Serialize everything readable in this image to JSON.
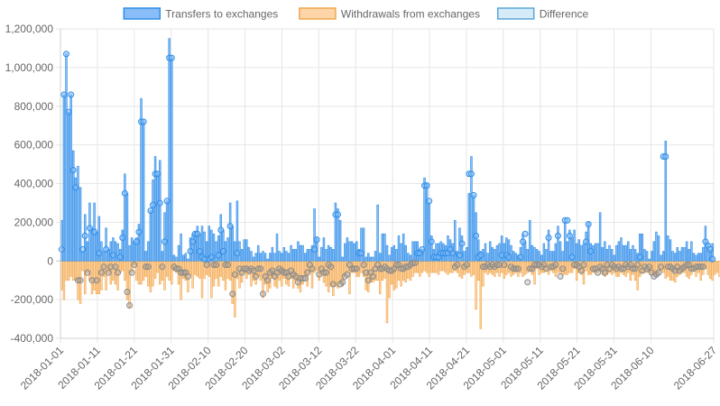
{
  "chart_data": {
    "type": "bar",
    "x_start": "2018-01-01",
    "x_end": "2018-06-27",
    "xticks": [
      "2018-01-01",
      "2018-01-11",
      "2018-01-21",
      "2018-01-31",
      "2018-02-10",
      "2018-02-20",
      "2018-03-02",
      "2018-03-12",
      "2018-03-22",
      "2018-04-01",
      "2018-04-11",
      "2018-04-21",
      "2018-05-01",
      "2018-05-11",
      "2018-05-21",
      "2018-05-31",
      "2018-06-10",
      "2018-06-27"
    ],
    "yticks": [
      "1,200,000",
      "1,000,000",
      "800,000",
      "600,000",
      "400,000",
      "200,000",
      "0",
      "-200,000",
      "-400,000"
    ],
    "ylim": [
      -400000,
      1200000
    ],
    "grid": true,
    "legend_position": "top",
    "colors": {
      "transfers_fill": "#88bdf7",
      "transfers_stroke": "#2f8ee6",
      "withdrawals_fill": "#fdd5a8",
      "withdrawals_stroke": "#f0a64b",
      "difference_fill": "#d6ebf8",
      "difference_stroke": "#5aa8d8"
    },
    "series": [
      {
        "name": "Transfers to exchanges",
        "values": [
          210000,
          860000,
          1070000,
          770000,
          860000,
          570000,
          430000,
          490000,
          380000,
          50000,
          240000,
          100000,
          300000,
          170000,
          300000,
          150000,
          230000,
          100000,
          50000,
          170000,
          60000,
          100000,
          120000,
          100000,
          90000,
          60000,
          160000,
          450000,
          350000,
          80000,
          120000,
          100000,
          120000,
          190000,
          840000,
          720000,
          50000,
          100000,
          260000,
          420000,
          540000,
          450000,
          520000,
          50000,
          250000,
          310000,
          1150000,
          1050000,
          30000,
          20000,
          80000,
          140000,
          30000,
          40000,
          10000,
          120000,
          140000,
          150000,
          180000,
          140000,
          180000,
          150000,
          100000,
          180000,
          160000,
          140000,
          100000,
          130000,
          240000,
          160000,
          100000,
          120000,
          300000,
          180000,
          100000,
          310000,
          100000,
          60000,
          110000,
          110000,
          70000,
          50000,
          20000,
          40000,
          80000,
          40000,
          50000,
          40000,
          10000,
          40000,
          70000,
          40000,
          140000,
          50000,
          40000,
          70000,
          50000,
          40000,
          80000,
          60000,
          60000,
          100000,
          80000,
          80000,
          40000,
          60000,
          60000,
          80000,
          270000,
          120000,
          20000,
          70000,
          120000,
          60000,
          80000,
          70000,
          60000,
          300000,
          270000,
          210000,
          20000,
          90000,
          120000,
          100000,
          100000,
          90000,
          100000,
          60000,
          170000,
          170000,
          20000,
          40000,
          20000,
          20000,
          50000,
          290000,
          40000,
          140000,
          140000,
          80000,
          30000,
          70000,
          80000,
          60000,
          130000,
          90000,
          140000,
          80000,
          40000,
          30000,
          100000,
          100000,
          100000,
          60000,
          60000,
          430000,
          400000,
          300000,
          130000,
          60000,
          90000,
          90000,
          100000,
          90000,
          80000,
          130000,
          110000,
          90000,
          210000,
          50000,
          170000,
          130000,
          50000,
          70000,
          350000,
          540000,
          340000,
          250000,
          110000,
          50000,
          60000,
          90000,
          40000,
          100000,
          70000,
          60000,
          80000,
          90000,
          130000,
          90000,
          120000,
          110000,
          80000,
          50000,
          40000,
          30000,
          70000,
          140000,
          100000,
          60000,
          210000,
          80000,
          70000,
          60000,
          50000,
          30000,
          90000,
          60000,
          160000,
          50000,
          50000,
          90000,
          180000,
          100000,
          50000,
          200000,
          100000,
          160000,
          120000,
          160000,
          90000,
          110000,
          80000,
          90000,
          150000,
          200000,
          90000,
          80000,
          90000,
          90000,
          250000,
          70000,
          100000,
          60000,
          80000,
          60000,
          30000,
          80000,
          100000,
          120000,
          80000,
          80000,
          100000,
          60000,
          80000,
          60000,
          40000,
          140000,
          140000,
          60000,
          50000,
          10000,
          50000,
          100000,
          150000,
          130000,
          30000,
          50000,
          620000,
          130000,
          110000,
          50000,
          40000,
          70000,
          50000,
          70000,
          70000,
          100000,
          60000,
          100000,
          40000,
          30000,
          40000,
          40000,
          70000,
          180000,
          90000,
          60000,
          90000
        ],
        "dots": [
          60000,
          860000,
          1070000,
          770000,
          860000,
          470000,
          380000,
          -100000,
          -100000,
          60000,
          130000,
          -60000,
          170000,
          -100000,
          150000,
          -100000,
          40000,
          -60000,
          -30000,
          60000,
          -60000,
          -30000,
          30000,
          -30000,
          -60000,
          20000,
          120000,
          350000,
          -160000,
          -230000,
          -60000,
          -20000,
          100000,
          150000,
          720000,
          720000,
          -30000,
          -30000,
          260000,
          290000,
          450000,
          450000,
          300000,
          -30000,
          100000,
          310000,
          1050000,
          1050000,
          -30000,
          -40000,
          -40000,
          -60000,
          -60000,
          -60000,
          -80000,
          50000,
          100000,
          140000,
          140000,
          50000,
          20000,
          10000,
          -20000,
          10000,
          20000,
          -20000,
          -20000,
          30000,
          160000,
          50000,
          -20000,
          -20000,
          180000,
          -170000,
          -70000,
          40000,
          -40000,
          -60000,
          -40000,
          -40000,
          -50000,
          -40000,
          -50000,
          -80000,
          -40000,
          -40000,
          -170000,
          -80000,
          -100000,
          -60000,
          -50000,
          -80000,
          -60000,
          -40000,
          -50000,
          -60000,
          -60000,
          -80000,
          -50000,
          -70000,
          -80000,
          -110000,
          -90000,
          -90000,
          -90000,
          -60000,
          -20000,
          -40000,
          60000,
          110000,
          -70000,
          -40000,
          -60000,
          -60000,
          -20000,
          -30000,
          -120000,
          240000,
          240000,
          -120000,
          -110000,
          -80000,
          -70000,
          -20000,
          -40000,
          -40000,
          -40000,
          40000,
          40000,
          -20000,
          -60000,
          -100000,
          -60000,
          -80000,
          -40000,
          -20000,
          -40000,
          -40000,
          -30000,
          -40000,
          -50000,
          -50000,
          -40000,
          -20000,
          -20000,
          -40000,
          -40000,
          -30000,
          -30000,
          -20000,
          -10000,
          -10000,
          40000,
          40000,
          60000,
          390000,
          390000,
          310000,
          100000,
          20000,
          20000,
          20000,
          40000,
          40000,
          40000,
          40000,
          60000,
          40000,
          -30000,
          -20000,
          30000,
          90000,
          -30000,
          -20000,
          450000,
          450000,
          340000,
          130000,
          20000,
          30000,
          -30000,
          -30000,
          -20000,
          -30000,
          -20000,
          -30000,
          -20000,
          -20000,
          30000,
          -20000,
          30000,
          20000,
          -30000,
          -40000,
          -40000,
          -40000,
          20000,
          100000,
          140000,
          -110000,
          -40000,
          -40000,
          -20000,
          -20000,
          -20000,
          -30000,
          -20000,
          -40000,
          120000,
          -30000,
          -30000,
          -20000,
          130000,
          -80000,
          -40000,
          210000,
          210000,
          130000,
          20000,
          -20000,
          -20000,
          -30000,
          -50000,
          -20000,
          100000,
          190000,
          50000,
          -40000,
          -40000,
          -60000,
          -30000,
          -40000,
          -60000,
          -20000,
          -40000,
          -20000,
          -30000,
          -40000,
          -30000,
          -40000,
          -40000,
          -20000,
          -30000,
          -20000,
          -40000,
          -40000,
          -20000,
          20000,
          -50000,
          -30000,
          -40000,
          -30000,
          -60000,
          -80000,
          -70000,
          -60000,
          -30000,
          540000,
          540000,
          -30000,
          -30000,
          -40000,
          -50000,
          -30000,
          -50000,
          -40000,
          -30000,
          -20000,
          -20000,
          -40000,
          -40000,
          -30000,
          -30000,
          -30000,
          -30000,
          100000,
          80000,
          60000,
          10000
        ]
      },
      {
        "name": "Withdrawals from exchanges",
        "values": [
          -150000,
          -200000,
          -100000,
          -100000,
          -80000,
          -100000,
          -100000,
          -200000,
          -220000,
          -50000,
          -170000,
          -60000,
          -100000,
          -170000,
          -150000,
          -170000,
          -170000,
          -150000,
          -80000,
          -150000,
          -60000,
          -120000,
          -100000,
          -120000,
          -150000,
          -60000,
          -50000,
          -100000,
          -200000,
          -240000,
          -60000,
          -20000,
          -100000,
          -120000,
          -120000,
          -100000,
          -80000,
          -130000,
          -160000,
          -130000,
          -90000,
          -60000,
          -120000,
          -100000,
          -150000,
          -80000,
          -100000,
          -120000,
          -50000,
          -60000,
          -120000,
          -200000,
          -90000,
          -100000,
          -160000,
          -70000,
          -140000,
          -70000,
          -80000,
          -90000,
          -190000,
          -90000,
          -70000,
          -80000,
          -190000,
          -130000,
          -90000,
          -130000,
          -80000,
          -100000,
          -150000,
          -90000,
          -100000,
          -220000,
          -290000,
          -90000,
          -140000,
          -110000,
          -60000,
          -90000,
          -70000,
          -130000,
          -100000,
          -120000,
          -80000,
          -100000,
          -190000,
          -120000,
          -160000,
          -140000,
          -90000,
          -130000,
          -140000,
          -100000,
          -130000,
          -90000,
          -120000,
          -130000,
          -90000,
          -140000,
          -100000,
          -140000,
          -160000,
          -120000,
          -80000,
          -130000,
          -60000,
          -140000,
          -60000,
          -50000,
          -100000,
          -70000,
          -110000,
          -130000,
          -160000,
          -130000,
          -180000,
          -130000,
          -140000,
          -110000,
          -130000,
          -80000,
          -60000,
          -170000,
          -60000,
          -60000,
          -80000,
          -80000,
          -60000,
          -80000,
          -150000,
          -160000,
          -110000,
          -110000,
          -100000,
          -100000,
          -170000,
          -100000,
          -90000,
          -320000,
          -190000,
          -120000,
          -150000,
          -140000,
          -100000,
          -130000,
          -100000,
          -110000,
          -90000,
          -100000,
          -80000,
          -60000,
          -60000,
          -80000,
          -60000,
          -50000,
          -60000,
          -80000,
          -60000,
          -60000,
          -60000,
          -70000,
          -50000,
          -50000,
          -60000,
          -70000,
          -60000,
          -60000,
          -50000,
          -60000,
          -80000,
          -90000,
          -70000,
          -60000,
          -60000,
          -80000,
          -70000,
          -250000,
          -100000,
          -350000,
          -130000,
          -60000,
          -70000,
          -60000,
          -70000,
          -80000,
          -60000,
          -80000,
          -60000,
          -90000,
          -70000,
          -60000,
          -80000,
          -70000,
          -60000,
          -80000,
          -60000,
          -80000,
          -70000,
          -60000,
          -50000,
          -70000,
          -120000,
          -40000,
          -70000,
          -60000,
          -60000,
          -50000,
          -70000,
          -50000,
          -60000,
          -80000,
          -60000,
          -60000,
          -70000,
          -70000,
          -70000,
          -60000,
          -60000,
          -40000,
          -100000,
          -60000,
          -70000,
          -120000,
          -50000,
          -70000,
          -70000,
          -60000,
          -60000,
          -60000,
          -50000,
          -70000,
          -80000,
          -70000,
          -60000,
          -70000,
          -60000,
          -80000,
          -80000,
          -60000,
          -70000,
          -80000,
          -60000,
          -100000,
          -70000,
          -100000,
          -150000,
          -80000,
          -60000,
          -60000,
          -60000,
          -60000,
          -70000,
          -70000,
          -80000,
          -60000,
          -50000,
          -60000,
          -90000,
          -80000,
          -100000,
          -100000,
          -110000,
          -80000,
          -70000,
          -60000,
          -60000,
          -80000,
          -90000,
          -70000,
          -50000,
          -80000,
          -60000,
          -100000,
          -70000,
          -40000,
          -70000,
          -90000,
          -100000,
          -70000,
          -60000,
          -80000,
          -70000,
          -90000,
          -60000,
          -80000
        ]
      },
      {
        "name": "Difference",
        "values": []
      }
    ]
  }
}
